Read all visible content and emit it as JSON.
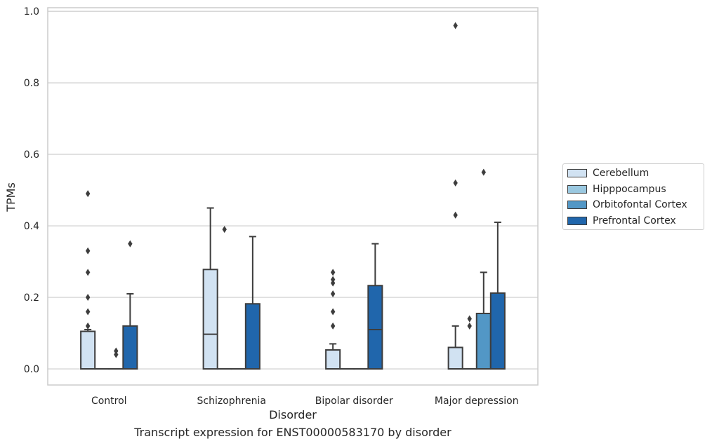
{
  "caption": "Transcript expression for ENST00000583170 by disorder",
  "chart_data": {
    "type": "box",
    "xlabel": "Disorder",
    "ylabel": "TPMs",
    "ylim": [
      -0.045,
      1.01
    ],
    "yticks": [
      0.0,
      0.2,
      0.4,
      0.6,
      0.8,
      1.0
    ],
    "ytick_labels": [
      "0.0",
      "0.2",
      "0.4",
      "0.6",
      "0.8",
      "1.0"
    ],
    "grid": true,
    "legend_position": "right",
    "categories": [
      "Control",
      "Schizophrenia",
      "Bipolar disorder",
      "Major depression"
    ],
    "series": [
      {
        "name": "Cerebellum",
        "color": "#d1e2f2",
        "boxes": [
          {
            "q1": 0,
            "median": 0,
            "q3": 0.105,
            "whislo": 0,
            "whishi": 0.11,
            "fliers": [
              0.12,
              0.16,
              0.2,
              0.27,
              0.33,
              0.49
            ]
          },
          {
            "q1": 0,
            "median": 0.097,
            "q3": 0.278,
            "whislo": 0,
            "whishi": 0.45,
            "fliers": []
          },
          {
            "q1": 0,
            "median": 0,
            "q3": 0.053,
            "whislo": 0,
            "whishi": 0.07,
            "fliers": [
              0.12,
              0.16,
              0.21,
              0.24,
              0.25,
              0.27
            ]
          },
          {
            "q1": 0,
            "median": 0,
            "q3": 0.06,
            "whislo": 0,
            "whishi": 0.12,
            "fliers": [
              0.43,
              0.52,
              0.96
            ]
          }
        ]
      },
      {
        "name": "Hipppocampus",
        "color": "#9ac8e0",
        "boxes": [
          {
            "q1": 0,
            "median": 0,
            "q3": 0,
            "whislo": 0,
            "whishi": 0,
            "fliers": []
          },
          {
            "q1": 0,
            "median": 0,
            "q3": 0,
            "whislo": 0,
            "whishi": 0,
            "fliers": [
              0.39
            ]
          },
          {
            "q1": 0,
            "median": 0,
            "q3": 0,
            "whislo": 0,
            "whishi": 0,
            "fliers": []
          },
          {
            "q1": 0,
            "median": 0,
            "q3": 0,
            "whislo": 0,
            "whishi": 0,
            "fliers": [
              0.12,
              0.14
            ]
          }
        ]
      },
      {
        "name": "Orbitofontal Cortex",
        "color": "#5297c6",
        "boxes": [
          {
            "q1": 0,
            "median": 0,
            "q3": 0,
            "whislo": 0,
            "whishi": 0,
            "fliers": [
              0.04,
              0.05
            ]
          },
          {
            "q1": 0,
            "median": 0,
            "q3": 0,
            "whislo": 0,
            "whishi": 0,
            "fliers": []
          },
          {
            "q1": 0,
            "median": 0,
            "q3": 0,
            "whislo": 0,
            "whishi": 0,
            "fliers": []
          },
          {
            "q1": 0,
            "median": 0,
            "q3": 0.155,
            "whislo": 0,
            "whishi": 0.27,
            "fliers": [
              0.55
            ]
          }
        ]
      },
      {
        "name": "Prefrontal Cortex",
        "color": "#2066ac",
        "boxes": [
          {
            "q1": 0,
            "median": 0,
            "q3": 0.12,
            "whislo": 0,
            "whishi": 0.21,
            "fliers": [
              0.35
            ]
          },
          {
            "q1": 0,
            "median": 0,
            "q3": 0.182,
            "whislo": 0,
            "whishi": 0.37,
            "fliers": []
          },
          {
            "q1": 0,
            "median": 0.11,
            "q3": 0.233,
            "whislo": 0,
            "whishi": 0.35,
            "fliers": []
          },
          {
            "q1": 0,
            "median": 0,
            "q3": 0.212,
            "whislo": 0,
            "whishi": 0.41,
            "fliers": []
          }
        ]
      }
    ]
  }
}
